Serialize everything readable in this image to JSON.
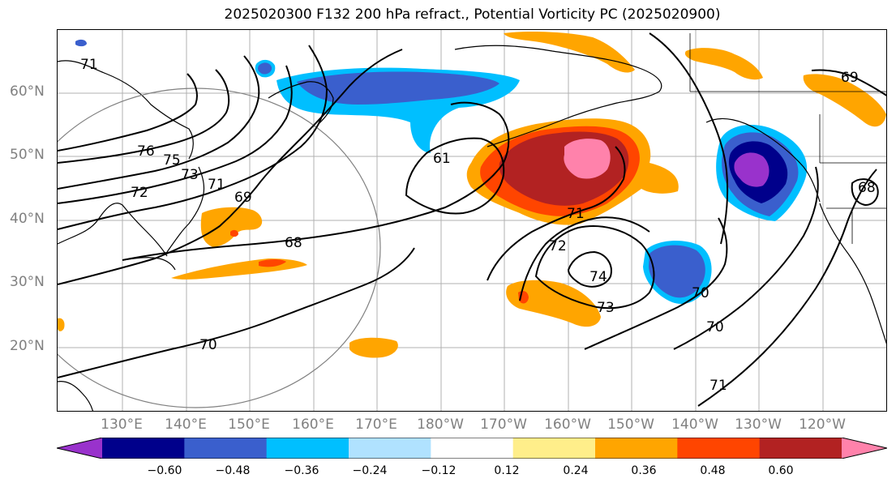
{
  "title": "2025020300 F132 200 hPa refract., Potential Vorticity PC (2025020900)",
  "latitude_labels": [
    "60°N",
    "50°N",
    "40°N",
    "30°N",
    "20°N"
  ],
  "longitude_labels": [
    "130°E",
    "140°E",
    "150°E",
    "160°E",
    "170°E",
    "180°W",
    "170°W",
    "160°W",
    "150°W",
    "140°W",
    "130°W",
    "120°W"
  ],
  "colorbar": {
    "ticks": [
      "−0.60",
      "−0.48",
      "−0.36",
      "−0.24",
      "−0.12",
      "0.12",
      "0.24",
      "0.36",
      "0.48",
      "0.60"
    ],
    "colors": [
      "#9932cc",
      "#00008b",
      "#3a5fcd",
      "#00bfff",
      "#b0e2ff",
      "#ffffff",
      "#ffee8a",
      "#ffa500",
      "#ff4500",
      "#b22222",
      "#ff82ab"
    ]
  },
  "contour_labels": [
    "76",
    "75",
    "73",
    "72",
    "71",
    "69",
    "68",
    "70",
    "61",
    "71",
    "72",
    "74",
    "73",
    "70",
    "70",
    "71",
    "68",
    "69",
    "71"
  ],
  "colors": {
    "contour": "#000000",
    "graticule": "#b0b0b0",
    "circle": "#808080",
    "axis_label": "#808080"
  }
}
